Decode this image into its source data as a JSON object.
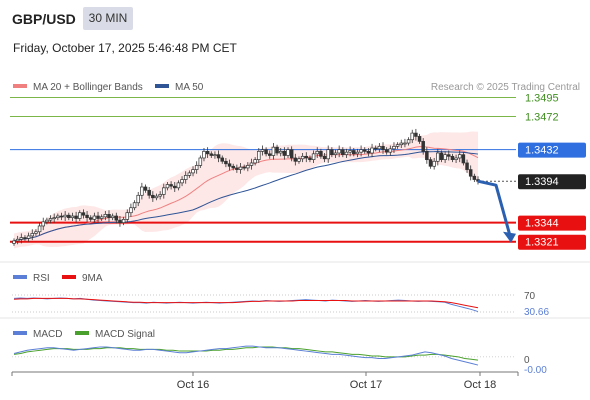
{
  "header": {
    "pair": "GBP/USD",
    "timeframe": "30 MIN",
    "datetime": "Friday, October 17, 2025 5:46:48 PM CET"
  },
  "legend": {
    "ma20_label": "MA 20 + Bollinger Bands",
    "ma50_label": "MA 50",
    "credit": "Research © 2025 Trading Central",
    "colors": {
      "ma20": "#f08080",
      "ma50": "#2f5597",
      "bands_fill": "#fde3e3"
    }
  },
  "chart_data": [
    {
      "type": "candlestick",
      "title": "",
      "ylim": [
        1.3305,
        1.351
      ],
      "x_ticks": [
        "Oct 16",
        "Oct 17",
        "Oct 18"
      ],
      "levels": [
        {
          "value": "1.3495",
          "price": 1.3495,
          "role": "resistance",
          "color": "#7ab648"
        },
        {
          "value": "1.3472",
          "price": 1.3472,
          "role": "resistance",
          "color": "#7ab648"
        },
        {
          "value": "1.3432",
          "price": 1.3432,
          "role": "pivot",
          "color": "#2f6fe0"
        },
        {
          "value": "1.3394",
          "price": 1.3394,
          "role": "last",
          "color": "#333333"
        },
        {
          "value": "1.3344",
          "price": 1.3344,
          "role": "support",
          "color": "#e81010"
        },
        {
          "value": "1.3321",
          "price": 1.3321,
          "role": "support",
          "color": "#e81010"
        }
      ],
      "close": [
        1.3322,
        1.3324,
        1.3326,
        1.3325,
        1.3328,
        1.3331,
        1.3333,
        1.334,
        1.3345,
        1.3347,
        1.3349,
        1.335,
        1.3352,
        1.3351,
        1.3353,
        1.335,
        1.3352,
        1.3349,
        1.3356,
        1.3353,
        1.335,
        1.3348,
        1.3352,
        1.3349,
        1.3351,
        1.3354,
        1.335,
        1.3352,
        1.3347,
        1.3344,
        1.3348,
        1.3356,
        1.3362,
        1.3368,
        1.3377,
        1.3387,
        1.3383,
        1.3377,
        1.3374,
        1.3376,
        1.3378,
        1.3386,
        1.339,
        1.3388,
        1.3386,
        1.3392,
        1.3396,
        1.3401,
        1.3404,
        1.3408,
        1.3413,
        1.3422,
        1.343,
        1.3427,
        1.3425,
        1.3426,
        1.3422,
        1.3418,
        1.3415,
        1.3412,
        1.341,
        1.3408,
        1.3411,
        1.341,
        1.3413,
        1.3416,
        1.342,
        1.343,
        1.3432,
        1.3427,
        1.3425,
        1.3435,
        1.3428,
        1.343,
        1.3425,
        1.3432,
        1.3422,
        1.3418,
        1.3421,
        1.3424,
        1.3422,
        1.342,
        1.3427,
        1.343,
        1.3424,
        1.3421,
        1.3432,
        1.3426,
        1.3428,
        1.3432,
        1.3426,
        1.3429,
        1.3431,
        1.3427,
        1.3429,
        1.3432,
        1.343,
        1.3428,
        1.3434,
        1.3433,
        1.3436,
        1.3432,
        1.3429,
        1.3433,
        1.3436,
        1.3438,
        1.344,
        1.344,
        1.3444,
        1.3452,
        1.3448,
        1.3442,
        1.343,
        1.342,
        1.3412,
        1.3418,
        1.3428,
        1.342,
        1.3426,
        1.3424,
        1.342,
        1.3422,
        1.3426,
        1.3416,
        1.3408,
        1.34,
        1.3396,
        1.3394
      ]
    },
    {
      "type": "line",
      "title": "",
      "series": [
        {
          "name": "RSI",
          "color": "#5b7fd6"
        },
        {
          "name": "9MA",
          "color": "#e81010"
        }
      ],
      "ylim": [
        0,
        100
      ],
      "levels": [
        "70",
        "30"
      ],
      "last_value": "30.66",
      "rsi": [
        62,
        63,
        62,
        63,
        62,
        61,
        62,
        63,
        62,
        61,
        62,
        60,
        58,
        57,
        56,
        55,
        54,
        53,
        52,
        52,
        51,
        53,
        52,
        51,
        52,
        53,
        52,
        51,
        52,
        53,
        52,
        51,
        52,
        53,
        54,
        55,
        56,
        55,
        57,
        56,
        55,
        56,
        57,
        58,
        59,
        58,
        57,
        56,
        58,
        57,
        56,
        55,
        56,
        57,
        56,
        55,
        56,
        57,
        58,
        57,
        56,
        55,
        56,
        55,
        54,
        53,
        48,
        44,
        40,
        36,
        31
      ],
      "ma9": [
        60,
        61,
        61,
        62,
        62,
        62,
        62,
        62,
        62,
        61,
        61,
        60,
        59,
        58,
        57,
        56,
        55,
        54,
        53,
        53,
        52,
        52,
        52,
        52,
        52,
        52,
        52,
        52,
        52,
        52,
        52,
        52,
        52,
        52,
        53,
        54,
        55,
        55,
        56,
        56,
        56,
        56,
        56,
        57,
        57,
        57,
        57,
        57,
        57,
        57,
        57,
        56,
        56,
        56,
        56,
        56,
        56,
        56,
        56,
        56,
        56,
        56,
        56,
        56,
        55,
        54,
        52,
        49,
        46,
        43,
        40
      ]
    },
    {
      "type": "line",
      "title": "",
      "series": [
        {
          "name": "MACD",
          "color": "#5b7fd6"
        },
        {
          "name": "MACD Signal",
          "color": "#4aa02c"
        }
      ],
      "ylim": [
        -0.0016,
        0.0018
      ],
      "zero_label": "0",
      "last_value": "-0.00",
      "macd": [
        0.0004,
        0.0006,
        0.0008,
        0.0009,
        0.001,
        0.0011,
        0.0011,
        0.001,
        0.0009,
        0.0008,
        0.0009,
        0.001,
        0.0011,
        0.0012,
        0.0012,
        0.0011,
        0.001,
        0.0009,
        0.0008,
        0.0008,
        0.0009,
        0.0009,
        0.0008,
        0.0007,
        0.0006,
        0.0005,
        0.0005,
        0.0006,
        0.0007,
        0.0008,
        0.0009,
        0.001,
        0.001,
        0.0011,
        0.0012,
        0.0013,
        0.0013,
        0.0012,
        0.0011,
        0.0011,
        0.0011,
        0.001,
        0.0009,
        0.0008,
        0.0007,
        0.0006,
        0.0005,
        0.0004,
        0.0003,
        0.0003,
        0.0002,
        0.0001,
        0.0,
        -0.0001,
        -0.0001,
        -0.0002,
        -0.0002,
        -0.0001,
        0.0,
        0.0001,
        0.0002,
        0.0004,
        0.0006,
        0.0005,
        0.0003,
        0.0001,
        -0.0002,
        -0.0004,
        -0.0006,
        -0.0008,
        -0.001
      ],
      "signal": [
        0.0003,
        0.0004,
        0.0006,
        0.0007,
        0.0008,
        0.0009,
        0.001,
        0.001,
        0.001,
        0.0009,
        0.0009,
        0.0009,
        0.001,
        0.001,
        0.0011,
        0.0011,
        0.0011,
        0.001,
        0.001,
        0.0009,
        0.0009,
        0.0009,
        0.0009,
        0.0008,
        0.0008,
        0.0007,
        0.0007,
        0.0007,
        0.0007,
        0.0007,
        0.0008,
        0.0008,
        0.0009,
        0.0009,
        0.001,
        0.0011,
        0.0011,
        0.0012,
        0.0012,
        0.0012,
        0.0011,
        0.0011,
        0.001,
        0.001,
        0.0009,
        0.0008,
        0.0007,
        0.0006,
        0.0006,
        0.0005,
        0.0004,
        0.0003,
        0.0003,
        0.0002,
        0.0001,
        0.0001,
        0.0,
        0.0,
        0.0,
        0.0,
        0.0001,
        0.0002,
        0.0002,
        0.0003,
        0.0003,
        0.0002,
        0.0001,
        0.0,
        -0.0002,
        -0.0003,
        -0.0004
      ]
    }
  ]
}
